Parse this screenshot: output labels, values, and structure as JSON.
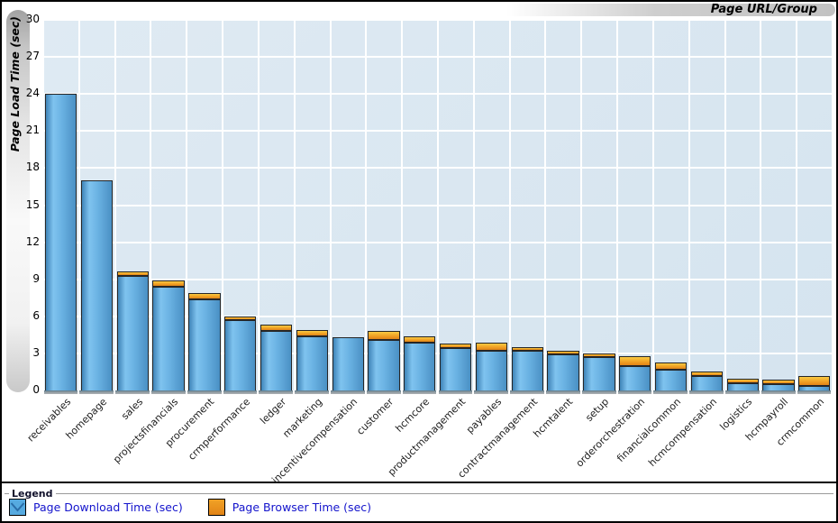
{
  "header": {
    "x_axis_title": "Page URL/Group",
    "y_axis_title": "Page Load Time (sec)"
  },
  "legend": {
    "title": "Legend"
  },
  "chart_data": {
    "type": "bar",
    "stacked": true,
    "title": "",
    "xlabel": "Page URL/Group",
    "ylabel": "Page Load Time (sec)",
    "ylim": [
      0,
      30
    ],
    "ytick_step": 3,
    "grid": true,
    "legend_position": "bottom",
    "plot_bg_color": "#d7e5ef",
    "grid_color": "#ffffff",
    "categories": [
      "receivables",
      "homepage",
      "sales",
      "projectsfinancials",
      "procurement",
      "crmperformance",
      "ledger",
      "marketing",
      "incentivecompensation",
      "customer",
      "hcmcore",
      "productmanagement",
      "payables",
      "contractmanagement",
      "hcmtalent",
      "setup",
      "orderorchestration",
      "financialcommon",
      "hcmcompensation",
      "logistics",
      "hcmpayroll",
      "crmcommon"
    ],
    "series": [
      {
        "name": "Page Download Time (sec)",
        "color": "#5FA9DB",
        "swatch": "download",
        "values": [
          24.0,
          17.0,
          9.3,
          8.4,
          7.4,
          5.7,
          4.8,
          4.4,
          4.3,
          4.1,
          3.9,
          3.4,
          3.2,
          3.2,
          2.9,
          2.7,
          2.0,
          1.7,
          1.2,
          0.6,
          0.5,
          0.4
        ]
      },
      {
        "name": "Page Browser Time (sec)",
        "color": "#EE9D22",
        "swatch": "browser",
        "values": [
          0,
          0,
          0.3,
          0.5,
          0.5,
          0.3,
          0.5,
          0.5,
          0,
          0.7,
          0.45,
          0.4,
          0.7,
          0.3,
          0.3,
          0.3,
          0.8,
          0.55,
          0.35,
          0.35,
          0.35,
          0.8
        ]
      }
    ]
  }
}
